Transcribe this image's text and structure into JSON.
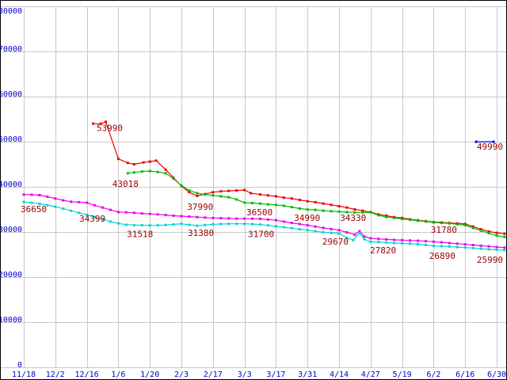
{
  "chart_data": {
    "type": "line",
    "grid": true,
    "ylim": [
      0,
      80000
    ],
    "xlim": [
      0,
      15.4
    ],
    "x_tick_labels": [
      "11/18",
      "12/2",
      "12/16",
      "1/6",
      "1/20",
      "2/3",
      "2/17",
      "3/3",
      "3/17",
      "3/31",
      "4/14",
      "4/27",
      "5/19",
      "6/2",
      "6/16",
      "6/30"
    ],
    "y_ticks": [
      0,
      10000,
      20000,
      30000,
      40000,
      50000,
      60000,
      70000,
      80000
    ],
    "colors": {
      "red": "#ee0000",
      "green": "#00bb00",
      "magenta": "#ee00ee",
      "cyan": "#00d5d5",
      "blue": "#0000dd",
      "grid": "#c8c8c8",
      "axis": "#0000cc",
      "label": "#990000",
      "border": "#000000",
      "background": "#ffffff"
    },
    "series": [
      {
        "name": "red",
        "color_key": "red",
        "points": [
          [
            2.2,
            54000
          ],
          [
            2.45,
            54000
          ],
          [
            2.6,
            54400
          ],
          [
            3.0,
            46200
          ],
          [
            3.3,
            45300
          ],
          [
            3.5,
            45000
          ],
          [
            3.8,
            45400
          ],
          [
            4.0,
            45600
          ],
          [
            4.2,
            45800
          ],
          [
            4.5,
            43800
          ],
          [
            4.75,
            42000
          ],
          [
            5.0,
            40200
          ],
          [
            5.25,
            38800
          ],
          [
            5.5,
            37990
          ],
          [
            5.75,
            38400
          ],
          [
            6.0,
            38800
          ],
          [
            6.25,
            39000
          ],
          [
            6.5,
            39100
          ],
          [
            6.75,
            39200
          ],
          [
            7.0,
            39300
          ],
          [
            7.2,
            38600
          ],
          [
            7.5,
            38300
          ],
          [
            7.75,
            38100
          ],
          [
            8.0,
            37900
          ],
          [
            8.25,
            37600
          ],
          [
            8.5,
            37400
          ],
          [
            8.75,
            37100
          ],
          [
            9.0,
            36800
          ],
          [
            9.25,
            36600
          ],
          [
            9.5,
            36300
          ],
          [
            9.75,
            36000
          ],
          [
            10.0,
            35700
          ],
          [
            10.25,
            35400
          ],
          [
            10.5,
            35000
          ],
          [
            10.75,
            34700
          ],
          [
            11.0,
            34400
          ],
          [
            11.25,
            33900
          ],
          [
            11.5,
            33600
          ],
          [
            11.75,
            33300
          ],
          [
            12.0,
            33100
          ],
          [
            12.25,
            32800
          ],
          [
            12.5,
            32600
          ],
          [
            12.75,
            32400
          ],
          [
            13.0,
            32200
          ],
          [
            13.25,
            32100
          ],
          [
            13.5,
            32000
          ],
          [
            13.75,
            31900
          ],
          [
            14.0,
            31780
          ],
          [
            14.25,
            31200
          ],
          [
            14.5,
            30600
          ],
          [
            14.75,
            30100
          ],
          [
            15.0,
            29800
          ],
          [
            15.25,
            29600
          ]
        ]
      },
      {
        "name": "green",
        "color_key": "green",
        "points": [
          [
            3.3,
            43018
          ],
          [
            3.5,
            43200
          ],
          [
            3.75,
            43400
          ],
          [
            4.0,
            43500
          ],
          [
            4.25,
            43300
          ],
          [
            4.5,
            43000
          ],
          [
            4.75,
            41800
          ],
          [
            5.0,
            40300
          ],
          [
            5.25,
            39200
          ],
          [
            5.5,
            38600
          ],
          [
            5.75,
            38300
          ],
          [
            6.0,
            38100
          ],
          [
            6.25,
            37900
          ],
          [
            6.5,
            37700
          ],
          [
            6.75,
            37200
          ],
          [
            7.0,
            36500
          ],
          [
            7.25,
            36400
          ],
          [
            7.5,
            36300
          ],
          [
            7.75,
            36100
          ],
          [
            8.0,
            36000
          ],
          [
            8.25,
            35800
          ],
          [
            8.5,
            35500
          ],
          [
            8.75,
            35200
          ],
          [
            9.0,
            34990
          ],
          [
            9.25,
            34900
          ],
          [
            9.5,
            34700
          ],
          [
            9.75,
            34600
          ],
          [
            10.0,
            34500
          ],
          [
            10.25,
            34400
          ],
          [
            10.5,
            34330
          ],
          [
            10.75,
            34330
          ],
          [
            11.0,
            34330
          ],
          [
            11.25,
            33700
          ],
          [
            11.5,
            33300
          ],
          [
            11.75,
            33100
          ],
          [
            12.0,
            32900
          ],
          [
            12.25,
            32700
          ],
          [
            12.5,
            32500
          ],
          [
            12.75,
            32300
          ],
          [
            13.0,
            32100
          ],
          [
            13.25,
            32000
          ],
          [
            13.5,
            31900
          ],
          [
            13.75,
            31700
          ],
          [
            14.0,
            31500
          ],
          [
            14.25,
            30900
          ],
          [
            14.5,
            30300
          ],
          [
            14.75,
            29700
          ],
          [
            15.0,
            29200
          ],
          [
            15.25,
            28900
          ]
        ]
      },
      {
        "name": "magenta",
        "color_key": "magenta",
        "points": [
          [
            0,
            38300
          ],
          [
            0.25,
            38250
          ],
          [
            0.5,
            38150
          ],
          [
            0.75,
            37800
          ],
          [
            1.0,
            37400
          ],
          [
            1.25,
            37000
          ],
          [
            1.5,
            36700
          ],
          [
            1.75,
            36600
          ],
          [
            2.0,
            36500
          ],
          [
            2.25,
            35900
          ],
          [
            2.5,
            35400
          ],
          [
            2.75,
            34900
          ],
          [
            3.0,
            34399
          ],
          [
            3.25,
            34350
          ],
          [
            3.5,
            34250
          ],
          [
            3.75,
            34100
          ],
          [
            4.0,
            34000
          ],
          [
            4.25,
            33900
          ],
          [
            4.5,
            33750
          ],
          [
            4.75,
            33600
          ],
          [
            5.0,
            33500
          ],
          [
            5.25,
            33400
          ],
          [
            5.5,
            33300
          ],
          [
            5.75,
            33200
          ],
          [
            6.0,
            33100
          ],
          [
            6.25,
            33050
          ],
          [
            6.5,
            33000
          ],
          [
            6.75,
            32950
          ],
          [
            7.0,
            32950
          ],
          [
            7.25,
            32950
          ],
          [
            7.5,
            32900
          ],
          [
            7.75,
            32750
          ],
          [
            8.0,
            32600
          ],
          [
            8.25,
            32300
          ],
          [
            8.5,
            32000
          ],
          [
            8.75,
            31750
          ],
          [
            9.0,
            31500
          ],
          [
            9.25,
            31200
          ],
          [
            9.5,
            30900
          ],
          [
            9.75,
            30650
          ],
          [
            10.0,
            30400
          ],
          [
            10.25,
            29900
          ],
          [
            10.5,
            29400
          ],
          [
            10.65,
            30200
          ],
          [
            10.8,
            29000
          ],
          [
            11.0,
            28600
          ],
          [
            11.25,
            28450
          ],
          [
            11.5,
            28350
          ],
          [
            11.75,
            28250
          ],
          [
            12.0,
            28200
          ],
          [
            12.25,
            28100
          ],
          [
            12.5,
            28050
          ],
          [
            12.75,
            27950
          ],
          [
            13.0,
            27850
          ],
          [
            13.25,
            27700
          ],
          [
            13.5,
            27550
          ],
          [
            13.75,
            27400
          ],
          [
            14.0,
            27250
          ],
          [
            14.25,
            27100
          ],
          [
            14.5,
            26950
          ],
          [
            14.75,
            26800
          ],
          [
            15.0,
            26650
          ],
          [
            15.25,
            26550
          ]
        ]
      },
      {
        "name": "cyan",
        "color_key": "cyan",
        "points": [
          [
            0,
            36650
          ],
          [
            0.25,
            36450
          ],
          [
            0.5,
            36250
          ],
          [
            0.75,
            35950
          ],
          [
            1.0,
            35600
          ],
          [
            1.25,
            35150
          ],
          [
            1.5,
            34700
          ],
          [
            1.75,
            34250
          ],
          [
            2.0,
            33800
          ],
          [
            2.25,
            33300
          ],
          [
            2.5,
            32800
          ],
          [
            2.75,
            32300
          ],
          [
            3.0,
            31900
          ],
          [
            3.25,
            31600
          ],
          [
            3.5,
            31518
          ],
          [
            3.75,
            31500
          ],
          [
            4.0,
            31450
          ],
          [
            4.25,
            31480
          ],
          [
            4.5,
            31550
          ],
          [
            4.75,
            31680
          ],
          [
            5.0,
            31800
          ],
          [
            5.25,
            31600
          ],
          [
            5.5,
            31380
          ],
          [
            5.75,
            31550
          ],
          [
            6.0,
            31700
          ],
          [
            6.25,
            31750
          ],
          [
            6.5,
            31800
          ],
          [
            6.75,
            31800
          ],
          [
            7.0,
            31800
          ],
          [
            7.25,
            31750
          ],
          [
            7.5,
            31650
          ],
          [
            7.75,
            31450
          ],
          [
            8.0,
            31250
          ],
          [
            8.25,
            31050
          ],
          [
            8.5,
            30850
          ],
          [
            8.75,
            30600
          ],
          [
            9.0,
            30400
          ],
          [
            9.25,
            30150
          ],
          [
            9.5,
            29950
          ],
          [
            9.75,
            29800
          ],
          [
            10.0,
            29670
          ],
          [
            10.25,
            28700
          ],
          [
            10.45,
            28200
          ],
          [
            10.65,
            29800
          ],
          [
            10.8,
            28400
          ],
          [
            11.0,
            27820
          ],
          [
            11.25,
            27750
          ],
          [
            11.5,
            27650
          ],
          [
            11.75,
            27550
          ],
          [
            12.0,
            27500
          ],
          [
            12.25,
            27400
          ],
          [
            12.5,
            27300
          ],
          [
            12.75,
            27100
          ],
          [
            13.0,
            26890
          ],
          [
            13.25,
            26850
          ],
          [
            13.5,
            26780
          ],
          [
            13.75,
            26650
          ],
          [
            14.0,
            26550
          ],
          [
            14.25,
            26430
          ],
          [
            14.5,
            26300
          ],
          [
            14.75,
            26150
          ],
          [
            15.0,
            26050
          ],
          [
            15.25,
            25990
          ]
        ]
      },
      {
        "name": "blue",
        "color_key": "blue",
        "points": [
          [
            14.35,
            49990
          ],
          [
            14.9,
            49990
          ]
        ]
      }
    ],
    "annotations": [
      {
        "text": "53990",
        "t": 2.31,
        "v": 52400
      },
      {
        "text": "43018",
        "t": 2.81,
        "v": 40000
      },
      {
        "text": "36650",
        "t": -0.1,
        "v": 34400
      },
      {
        "text": "34399",
        "t": 1.76,
        "v": 32300
      },
      {
        "text": "31518",
        "t": 3.27,
        "v": 28900
      },
      {
        "text": "37990",
        "t": 5.18,
        "v": 34900
      },
      {
        "text": "31380",
        "t": 5.2,
        "v": 29100
      },
      {
        "text": "36500",
        "t": 7.06,
        "v": 33700
      },
      {
        "text": "31700",
        "t": 7.11,
        "v": 28900
      },
      {
        "text": "34990",
        "t": 8.57,
        "v": 32450
      },
      {
        "text": "29670",
        "t": 9.47,
        "v": 27200
      },
      {
        "text": "34330",
        "t": 10.03,
        "v": 32450
      },
      {
        "text": "27820",
        "t": 10.98,
        "v": 25260
      },
      {
        "text": "31780",
        "t": 12.91,
        "v": 29800
      },
      {
        "text": "26890",
        "t": 12.86,
        "v": 24000
      },
      {
        "text": "49990",
        "t": 14.37,
        "v": 48250
      },
      {
        "text": "25990",
        "t": 14.37,
        "v": 23150
      }
    ]
  }
}
